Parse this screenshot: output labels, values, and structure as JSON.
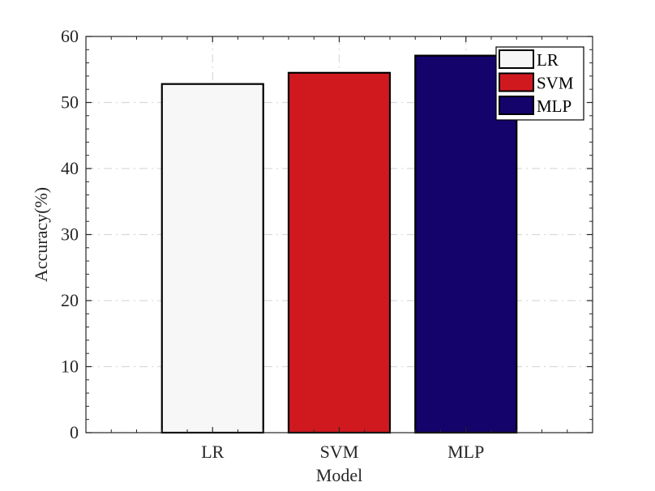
{
  "chart_data": {
    "type": "bar",
    "categories": [
      "LR",
      "SVM",
      "MLP"
    ],
    "values": [
      52.8,
      54.5,
      57.1
    ],
    "colors": [
      "#f7f7f7",
      "#d0191f",
      "#13036a"
    ],
    "xlabel": "Model",
    "ylabel": "Accuracy(%)",
    "ylim": [
      0,
      60
    ],
    "yticks": [
      0,
      10,
      20,
      30,
      40,
      50,
      60
    ],
    "grid": true,
    "legend": {
      "placement": "top-right",
      "entries": [
        "LR",
        "SVM",
        "MLP"
      ]
    }
  }
}
